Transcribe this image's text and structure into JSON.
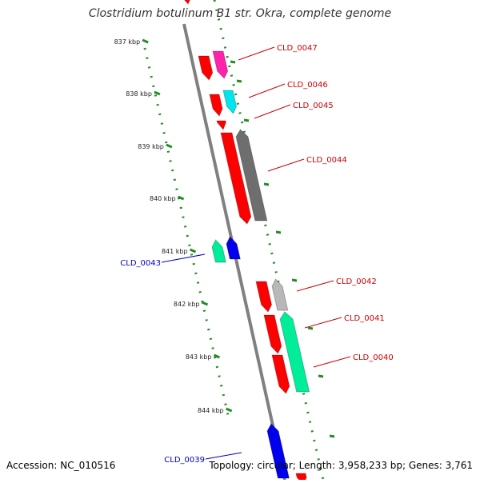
{
  "title": "Clostridium botulinum B1 str. Okra, complete genome",
  "footer": {
    "accession": "Accession: NC_010516",
    "summary": "Topology: circular; Length: 3,958,233 bp; Genes: 3,761"
  },
  "ticks": [
    "837 kbp",
    "838 kbp",
    "839 kbp",
    "840 kbp",
    "841 kbp",
    "842 kbp",
    "843 kbp",
    "844 kbp"
  ],
  "genes": [
    {
      "label": "CLD_0047",
      "color": "#cc0000"
    },
    {
      "label": "CLD_0046",
      "color": "#cc0000"
    },
    {
      "label": "CLD_0045",
      "color": "#cc0000"
    },
    {
      "label": "CLD_0044",
      "color": "#cc0000"
    },
    {
      "label": "CLD_0043",
      "color": "#0000cc"
    },
    {
      "label": "CLD_0042",
      "color": "#cc0000"
    },
    {
      "label": "CLD_0041",
      "color": "#cc0000"
    },
    {
      "label": "CLD_0040",
      "color": "#cc0000"
    },
    {
      "label": "CLD_0039",
      "color": "#0000cc"
    }
  ],
  "colors": {
    "backbone": "#808080",
    "tick_ring": "#228b22",
    "red": "#ff0000",
    "magenta": "#ff22aa",
    "cyan": "#00e5ee",
    "gray_dark": "#6e6e6e",
    "gray_light": "#b8b8b8",
    "spring_green": "#00ee99",
    "blue": "#0000ee"
  }
}
